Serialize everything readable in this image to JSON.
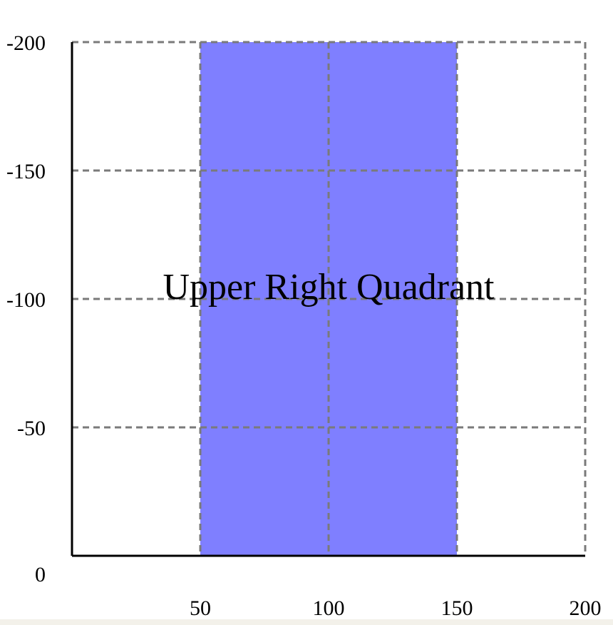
{
  "chart_data": {
    "type": "area",
    "title": "",
    "xlabel": "",
    "ylabel": "",
    "xlim": [
      0,
      200
    ],
    "ylim": [
      0,
      -200
    ],
    "x_ticks": [
      {
        "value": 50,
        "label": "50"
      },
      {
        "value": 100,
        "label": "100"
      },
      {
        "value": 150,
        "label": "150"
      },
      {
        "value": 200,
        "label": "200"
      }
    ],
    "y_ticks": [
      {
        "value": 0,
        "label": "0"
      },
      {
        "value": -50,
        "label": "-50"
      },
      {
        "value": -100,
        "label": "-100"
      },
      {
        "value": -150,
        "label": "-150"
      },
      {
        "value": -200,
        "label": "-200"
      }
    ],
    "grid": true,
    "regions": [
      {
        "x_range": [
          50,
          150
        ],
        "y_range": [
          0,
          -200
        ],
        "color": "#7f7fff"
      }
    ],
    "annotations": [
      {
        "text": "Upper Right Quadrant",
        "x": 100,
        "y": -105
      }
    ]
  }
}
